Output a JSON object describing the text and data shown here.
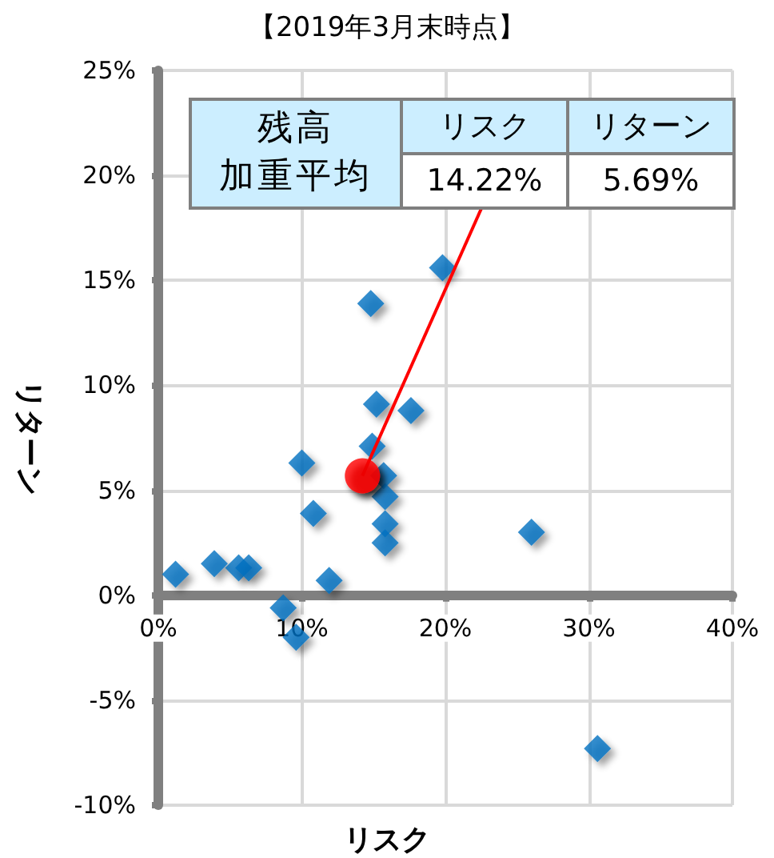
{
  "chart_data": {
    "type": "scatter",
    "title": "【2019年3月末時点】",
    "xlabel": "リスク",
    "ylabel": "リターン",
    "annotations": [
      "残高",
      "加重平均",
      "リスク",
      "リターン",
      "14.22%",
      "5.69%"
    ],
    "xlim": [
      0,
      40
    ],
    "xticks": [
      {
        "value": 0,
        "label": "0%"
      },
      {
        "value": 10,
        "label": "10%"
      },
      {
        "value": 20,
        "label": "20%"
      },
      {
        "value": 30,
        "label": "30%"
      },
      {
        "value": 40,
        "label": "40%"
      }
    ],
    "ylim": [
      -10,
      25
    ],
    "yticks": [
      {
        "value": -10,
        "label": "-10%"
      },
      {
        "value": -5,
        "label": "-5%"
      },
      {
        "value": 0,
        "label": "0%"
      },
      {
        "value": 5,
        "label": "5%"
      },
      {
        "value": 10,
        "label": "10%"
      },
      {
        "value": 15,
        "label": "15%"
      },
      {
        "value": 20,
        "label": "20%"
      },
      {
        "value": 25,
        "label": "25%"
      }
    ],
    "grid": true,
    "series": [
      {
        "color": "#0070c0",
        "marker": "diamond",
        "x": [
          19.8,
          14.8,
          15.2,
          17.6,
          14.9,
          10.0,
          15.7,
          15.8,
          10.8,
          15.8,
          15.8,
          26.0,
          1.2,
          3.9,
          5.6,
          6.3,
          11.9,
          8.7,
          9.6,
          30.6
        ],
        "values": [
          15.6,
          13.9,
          9.1,
          8.8,
          7.1,
          6.3,
          5.7,
          4.7,
          3.9,
          3.4,
          2.5,
          3.0,
          1.0,
          1.5,
          1.3,
          1.3,
          0.7,
          -0.6,
          -2.0,
          -7.3
        ]
      },
      {
        "color": "#ff0000",
        "marker": "circle",
        "x": [
          14.22
        ],
        "values": [
          5.69
        ]
      }
    ]
  }
}
